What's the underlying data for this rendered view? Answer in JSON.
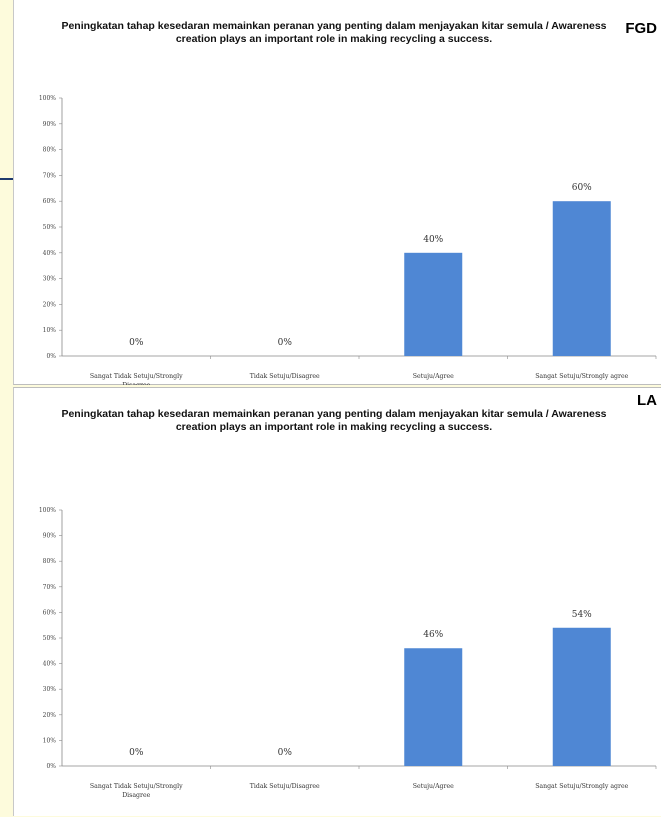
{
  "chart_data": [
    {
      "type": "bar",
      "title": "Peningkatan tahap kesedaran memainkan peranan yang penting dalam menjayakan kitar semula / Awareness creation plays an important role in making recycling a success.",
      "tag": "FGD",
      "categories": [
        "Sangat Tidak Setuju/Strongly Disagree",
        "Tidak Setuju/Disagree",
        "Setuju/Agree",
        "Sangat Setuju/Strongly agree"
      ],
      "values": [
        0,
        0,
        40,
        60
      ],
      "data_labels": [
        "0%",
        "0%",
        "40%",
        "60%"
      ],
      "ylim": [
        0,
        100
      ],
      "yticks": [
        "0%",
        "10%",
        "20%",
        "30%",
        "40%",
        "50%",
        "60%",
        "70%",
        "80%",
        "90%",
        "100%"
      ],
      "bar_color": "#4f87d4",
      "grid": false,
      "legend": "none"
    },
    {
      "type": "bar",
      "title": "Peningkatan tahap kesedaran memainkan peranan yang penting dalam menjayakan kitar semula / Awareness creation plays an important role in making recycling a success.",
      "tag": "LA",
      "categories": [
        "Sangat Tidak Setuju/Strongly Disagree",
        "Tidak Setuju/Disagree",
        "Setuju/Agree",
        "Sangat Setuju/Strongly agree"
      ],
      "values": [
        0,
        0,
        46,
        54
      ],
      "data_labels": [
        "0%",
        "0%",
        "46%",
        "54%"
      ],
      "ylim": [
        0,
        100
      ],
      "yticks": [
        "0%",
        "10%",
        "20%",
        "30%",
        "40%",
        "50%",
        "60%",
        "70%",
        "80%",
        "90%",
        "100%"
      ],
      "bar_color": "#4f87d4",
      "grid": false,
      "legend": "none"
    }
  ]
}
